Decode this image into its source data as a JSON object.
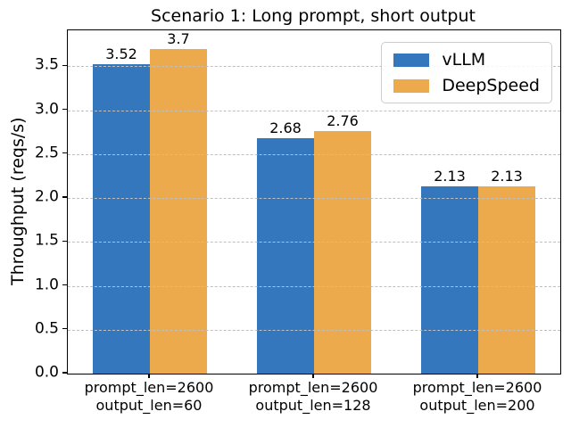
{
  "chart_data": {
    "type": "bar",
    "title": "Scenario 1: Long prompt, short output",
    "ylabel": "Throughput (reqs/s)",
    "xlabel": "",
    "categories": [
      [
        "prompt_len=2600",
        "output_len=60"
      ],
      [
        "prompt_len=2600",
        "output_len=128"
      ],
      [
        "prompt_len=2600",
        "output_len=200"
      ]
    ],
    "series": [
      {
        "name": "vLLM",
        "color": "#3577bd",
        "values": [
          3.52,
          2.68,
          2.13
        ],
        "value_labels": [
          "3.52",
          "2.68",
          "2.13"
        ]
      },
      {
        "name": "DeepSpeed",
        "color": "#ecaa4d",
        "values": [
          3.7,
          2.76,
          2.13
        ],
        "value_labels": [
          "3.7",
          "2.76",
          "2.13"
        ]
      }
    ],
    "yticks": [
      0.0,
      0.5,
      1.0,
      1.5,
      2.0,
      2.5,
      3.0,
      3.5
    ],
    "ylim": [
      0,
      3.91
    ],
    "grid": "dashed-horizontal",
    "grid_color": "#bfbfbf",
    "axis_color": "#000000",
    "text_color": "#000000",
    "legend_position": "upper-right",
    "legend_entries": [
      "vLLM",
      "DeepSpeed"
    ]
  }
}
